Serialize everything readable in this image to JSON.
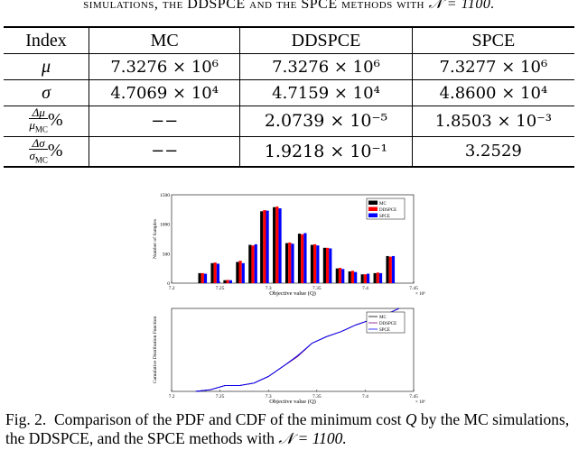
{
  "table_caption": {
    "text": "simulations, the DDSPCE and the SPCE methods with",
    "math": "𝒩 = 1100."
  },
  "table": {
    "headers": [
      "Index",
      "MC",
      "DDSPCE",
      "SPCE"
    ],
    "rows": [
      {
        "label": "μ",
        "mc": "7.3276 × 10⁶",
        "ddspce": "7.3276 × 10⁶",
        "spce": "7.3277 × 10⁶"
      },
      {
        "label": "σ",
        "mc": "4.7069 × 10⁴",
        "ddspce": "4.7159 × 10⁴",
        "spce": "4.8600 × 10⁴"
      },
      {
        "label_num": "Δμ",
        "label_den": "μ",
        "label_sub": "MC",
        "label_suffix": "%",
        "mc": "−−",
        "ddspce": "2.0739 × 10⁻⁵",
        "spce": "1.8503 × 10⁻³"
      },
      {
        "label_num": "Δσ",
        "label_den": "σ",
        "label_sub": "MC",
        "label_suffix": "%",
        "mc": "−−",
        "ddspce": "1.9218 × 10⁻¹",
        "spce": "3.2529"
      }
    ]
  },
  "figure_caption": {
    "label": "Fig. 2.",
    "text1": "Comparison of the PDF and CDF of the minimum cost",
    "var": "Q",
    "text2": "by the MC simulations, the DDSPCE, and the SPCE methods with",
    "math": "𝒩 = 1100."
  },
  "chart_data": [
    {
      "type": "bar",
      "xlabel": "Objective value (Q)",
      "ylabel": "Number of Samples",
      "xlim": [
        7.2,
        7.45
      ],
      "ylim": [
        0,
        1500
      ],
      "xticks": [
        "7.2",
        "7.25",
        "7.3",
        "7.35",
        "7.4",
        "7.45"
      ],
      "yticks": [
        "0",
        "500",
        "1000",
        "1500"
      ],
      "x_multiplier": "× 10⁶",
      "legend": [
        "MC",
        "DDSPCE",
        "SPCE"
      ],
      "legend_position": "top-right",
      "colors": [
        "#000000",
        "#ff0000",
        "#0000ff"
      ],
      "categories": [
        7.232,
        7.245,
        7.258,
        7.271,
        7.284,
        7.296,
        7.309,
        7.322,
        7.335,
        7.348,
        7.361,
        7.374,
        7.387,
        7.4,
        7.413,
        7.426
      ],
      "series": [
        {
          "name": "MC",
          "values": [
            170,
            340,
            50,
            360,
            650,
            1220,
            1290,
            680,
            840,
            650,
            600,
            250,
            200,
            150,
            170,
            460
          ]
        },
        {
          "name": "DDSPCE",
          "values": [
            170,
            350,
            55,
            380,
            640,
            1240,
            1300,
            690,
            830,
            660,
            600,
            260,
            210,
            150,
            180,
            450
          ]
        },
        {
          "name": "SPCE",
          "values": [
            160,
            330,
            50,
            340,
            660,
            1230,
            1270,
            670,
            850,
            640,
            590,
            240,
            190,
            160,
            170,
            460
          ]
        }
      ]
    },
    {
      "type": "line",
      "xlabel": "Objective value (Q)",
      "ylabel": "Cumulative Distribution Function",
      "xlim": [
        7.2,
        7.45
      ],
      "ylim": [
        0,
        1
      ],
      "xticks": [
        "7.2",
        "7.25",
        "7.3",
        "7.35",
        "7.4",
        "7.45"
      ],
      "x_multiplier": "× 10⁶",
      "legend": [
        "MC",
        "DDSPCE",
        "SPCE"
      ],
      "legend_position": "top-right",
      "colors": [
        "#000000",
        "#800080",
        "#0000ff"
      ],
      "x": [
        7.225,
        7.24,
        7.255,
        7.27,
        7.285,
        7.3,
        7.315,
        7.33,
        7.345,
        7.36,
        7.375,
        7.39,
        7.405,
        7.42,
        7.435
      ],
      "series": [
        {
          "name": "MC",
          "values": [
            0,
            0.02,
            0.07,
            0.07,
            0.1,
            0.18,
            0.3,
            0.42,
            0.58,
            0.66,
            0.72,
            0.8,
            0.86,
            0.92,
            1.0
          ]
        },
        {
          "name": "DDSPCE",
          "values": [
            0,
            0.02,
            0.07,
            0.07,
            0.1,
            0.18,
            0.3,
            0.42,
            0.58,
            0.66,
            0.72,
            0.8,
            0.86,
            0.92,
            1.0
          ]
        },
        {
          "name": "SPCE",
          "values": [
            0,
            0.02,
            0.07,
            0.07,
            0.1,
            0.18,
            0.3,
            0.43,
            0.58,
            0.66,
            0.72,
            0.8,
            0.86,
            0.92,
            1.0
          ]
        }
      ]
    }
  ]
}
